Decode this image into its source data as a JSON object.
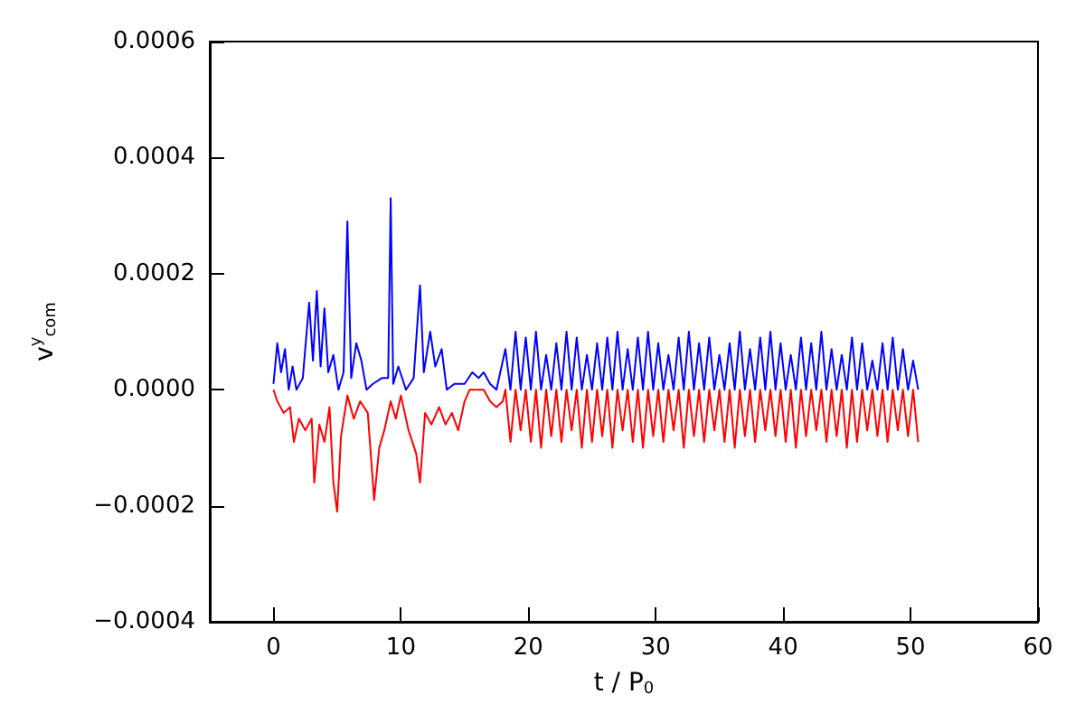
{
  "chart_data": {
    "type": "line",
    "xlabel": "t / P$_{0}$",
    "ylabel": "v$^{y}$$_{com}$",
    "xlim": [
      -5,
      60
    ],
    "xticks": [
      0,
      10,
      20,
      30,
      40,
      50,
      60
    ],
    "ylim": [
      -0.0004,
      0.0006
    ],
    "yticks": [
      {
        "value": -0.0004,
        "label": "−0.0004"
      },
      {
        "value": -0.0002,
        "label": "−0.0002"
      },
      {
        "value": 0,
        "label": "0.0000"
      },
      {
        "value": 0.0002,
        "label": "0.0002"
      },
      {
        "value": 0.0004,
        "label": "0.0004"
      },
      {
        "value": 0.0006,
        "label": "0.0006"
      }
    ],
    "grid": false,
    "marker": "none",
    "line_style": "solid",
    "series": [
      {
        "color": "#0000ff",
        "x": [
          0,
          0.3,
          0.6,
          0.9,
          1.2,
          1.5,
          1.8,
          2.3,
          2.8,
          3.1,
          3.4,
          3.7,
          4.0,
          4.3,
          4.7,
          5.1,
          5.5,
          5.8,
          6.1,
          6.5,
          6.9,
          7.3,
          7.8,
          8.5,
          9.0,
          9.2,
          9.4,
          9.8,
          10.4,
          11.0,
          11.5,
          11.8,
          12.3,
          12.7,
          13.2,
          13.6,
          14.2,
          15.0,
          15.6,
          16.1,
          16.5,
          17.0,
          17.5,
          18.2,
          18.6,
          19,
          19.4,
          19.8,
          20.2,
          20.6,
          21,
          21.4,
          21.8,
          22.2,
          22.6,
          23,
          23.4,
          23.8,
          24.2,
          24.6,
          25,
          25.4,
          25.8,
          26.2,
          26.6,
          27,
          27.4,
          27.8,
          28.2,
          28.6,
          29,
          29.4,
          29.8,
          30.2,
          30.6,
          31,
          31.4,
          31.8,
          32.2,
          32.6,
          33,
          33.4,
          33.8,
          34.2,
          34.6,
          35,
          35.4,
          35.8,
          36.2,
          36.6,
          37,
          37.4,
          37.8,
          38.2,
          38.6,
          39,
          39.4,
          39.8,
          40.2,
          40.6,
          41,
          41.4,
          41.8,
          42.2,
          42.6,
          43,
          43.4,
          43.8,
          44.2,
          44.6,
          45,
          45.4,
          45.8,
          46.2,
          46.6,
          47,
          47.4,
          47.8,
          48.2,
          48.6,
          49,
          49.4,
          49.8,
          50.2,
          50.6
        ],
        "values": [
          1e-05,
          8e-05,
          3e-05,
          7e-05,
          0,
          4e-05,
          0,
          2e-05,
          0.00015,
          5e-05,
          0.00017,
          4e-05,
          0.00014,
          3e-05,
          6e-05,
          0,
          3e-05,
          0.00029,
          2e-05,
          8e-05,
          5e-05,
          0,
          1e-05,
          2e-05,
          2e-05,
          0.00033,
          1e-05,
          4e-05,
          0,
          2e-05,
          0.00018,
          3e-05,
          0.0001,
          4e-05,
          7e-05,
          0,
          1e-05,
          1e-05,
          3e-05,
          2e-05,
          3e-05,
          1e-05,
          0,
          7e-05,
          0,
          0.0001,
          0,
          9e-05,
          0,
          0.0001,
          0,
          6e-05,
          0,
          8e-05,
          0,
          0.0001,
          0,
          9e-05,
          0,
          6e-05,
          0,
          8e-05,
          0,
          9e-05,
          0,
          0.0001,
          0,
          7e-05,
          0,
          9e-05,
          0,
          0.0001,
          0,
          8e-05,
          0,
          6e-05,
          0,
          9e-05,
          0,
          0.0001,
          0,
          8e-05,
          0,
          9e-05,
          0,
          6e-05,
          0,
          8e-05,
          0,
          0.0001,
          0,
          7e-05,
          0,
          9e-05,
          0,
          0.0001,
          0,
          8e-05,
          0,
          6e-05,
          0,
          9e-05,
          0,
          8e-05,
          0,
          0.0001,
          0,
          7e-05,
          0,
          6e-05,
          0,
          9e-05,
          0,
          8e-05,
          0,
          5e-05,
          0,
          8e-05,
          0,
          9e-05,
          0,
          7e-05,
          0,
          5e-05,
          0
        ]
      },
      {
        "color": "#ff0000",
        "x": [
          0,
          0.3,
          0.8,
          1.3,
          1.6,
          2.0,
          2.5,
          3.0,
          3.2,
          3.6,
          4.0,
          4.4,
          4.7,
          5.0,
          5.3,
          5.8,
          6.3,
          6.8,
          7.4,
          7.9,
          8.3,
          8.7,
          9.2,
          9.6,
          10.0,
          10.6,
          11.2,
          11.5,
          11.9,
          12.4,
          13.0,
          13.5,
          14.0,
          14.5,
          15.0,
          15.4,
          16.5,
          17.0,
          17.5,
          18.0,
          18.2,
          18.6,
          19,
          19.4,
          19.8,
          20.2,
          20.6,
          21,
          21.4,
          21.8,
          22.2,
          22.6,
          23,
          23.4,
          23.8,
          24.2,
          24.6,
          25,
          25.4,
          25.8,
          26.2,
          26.6,
          27,
          27.4,
          27.8,
          28.2,
          28.6,
          29,
          29.4,
          29.8,
          30.2,
          30.6,
          31,
          31.4,
          31.8,
          32.2,
          32.6,
          33,
          33.4,
          33.8,
          34.2,
          34.6,
          35,
          35.4,
          35.8,
          36.2,
          36.6,
          37,
          37.4,
          37.8,
          38.2,
          38.6,
          39,
          39.4,
          39.8,
          40.2,
          40.6,
          41,
          41.4,
          41.8,
          42.2,
          42.6,
          43,
          43.4,
          43.8,
          44.2,
          44.6,
          45,
          45.4,
          45.8,
          46.2,
          46.6,
          47,
          47.4,
          47.8,
          48.2,
          48.6,
          49,
          49.4,
          49.8,
          50.2,
          50.6
        ],
        "values": [
          0,
          -2e-05,
          -4e-05,
          -3e-05,
          -9e-05,
          -5e-05,
          -7e-05,
          -5e-05,
          -0.00016,
          -6e-05,
          -9e-05,
          -3e-05,
          -0.00016,
          -0.00021,
          -8e-05,
          -1e-05,
          -5e-05,
          -2e-05,
          -4e-05,
          -0.00019,
          -0.0001,
          -7e-05,
          -2e-05,
          -5e-05,
          -1e-05,
          -7e-05,
          -0.00011,
          -0.00016,
          -4e-05,
          -6e-05,
          -3e-05,
          -6e-05,
          -4e-05,
          -7e-05,
          -2e-05,
          0,
          0,
          -2e-05,
          -3e-05,
          -2e-05,
          0,
          -9e-05,
          0,
          -7e-05,
          0,
          -9e-05,
          0,
          -0.0001,
          0,
          -8e-05,
          0,
          -9e-05,
          0,
          -7e-05,
          0,
          -0.0001,
          0,
          -9e-05,
          0,
          -8e-05,
          0,
          -0.0001,
          0,
          -7e-05,
          0,
          -9e-05,
          0,
          -0.0001,
          0,
          -8e-05,
          0,
          -9e-05,
          0,
          -7e-05,
          0,
          -0.0001,
          0,
          -8e-05,
          0,
          -9e-05,
          0,
          -7e-05,
          0,
          -9e-05,
          0,
          -0.0001,
          0,
          -8e-05,
          0,
          -9e-05,
          0,
          -7e-05,
          0,
          -8e-05,
          0,
          -9e-05,
          0,
          -0.0001,
          0,
          -8e-05,
          0,
          -7e-05,
          0,
          -9e-05,
          0,
          -8e-05,
          0,
          -0.0001,
          0,
          -9e-05,
          0,
          -7e-05,
          0,
          -8e-05,
          0,
          -9e-05,
          0,
          -7e-05,
          0,
          -8e-05,
          0,
          -9e-05
        ]
      }
    ]
  }
}
